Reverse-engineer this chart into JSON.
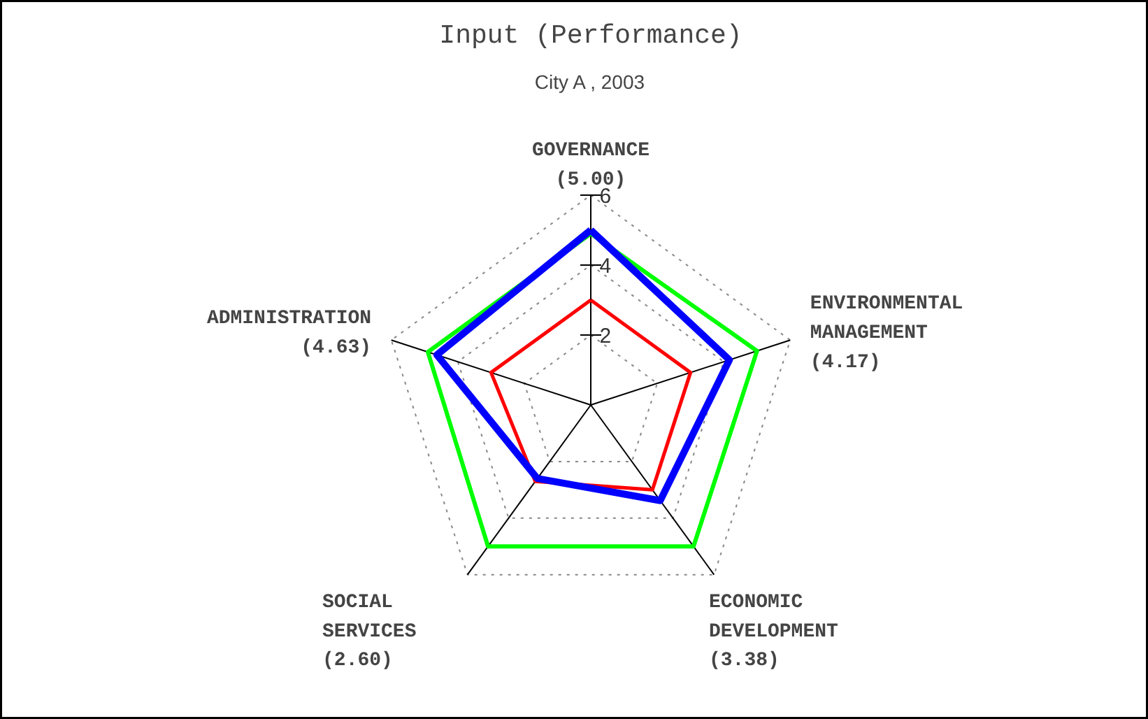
{
  "chart_data": {
    "type": "radar",
    "title": "Input (Performance)",
    "subtitle": "City A , 2003",
    "categories": [
      "GOVERNANCE (5.00)",
      "ENVIRONMENTAL MANAGEMENT (4.17)",
      "ECONOMIC DEVELOPMENT (3.38)",
      "SOCIAL SERVICES (2.60)",
      "ADMINISTRATION (4.63)"
    ],
    "ylim": [
      0,
      6
    ],
    "yticks": [
      2,
      4,
      6
    ],
    "grid": true,
    "series": [
      {
        "color": "#00ff00",
        "values": [
          4.9,
          5.0,
          5.0,
          5.0,
          4.9
        ]
      },
      {
        "color": "#ff0000",
        "values": [
          3.0,
          3.0,
          3.0,
          2.7,
          3.0
        ]
      },
      {
        "color": "#0000ff",
        "values": [
          5.0,
          4.17,
          3.38,
          2.6,
          4.63
        ]
      }
    ]
  }
}
